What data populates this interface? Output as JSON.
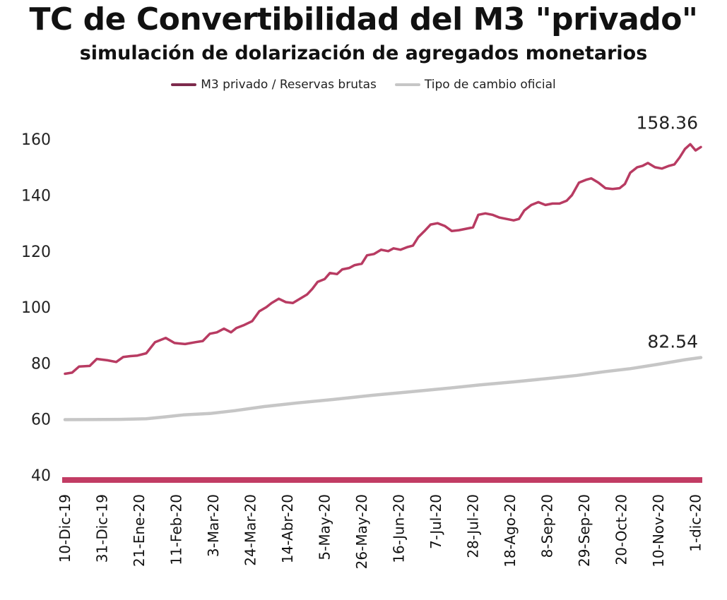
{
  "chart_data": {
    "type": "line",
    "title": "TC de Convertibilidad del M3 \"privado\"",
    "subtitle": "simulación de dolarización de agregados monetarios",
    "ylim": [
      40,
      170
    ],
    "yticks": [
      40,
      60,
      80,
      100,
      120,
      140,
      160
    ],
    "grid": false,
    "legend": "top-center",
    "x_start": "2019-12-10",
    "x_end": "2020-12-04",
    "x_tick_labels": [
      {
        "date": "2019-12-10",
        "label": "10-Dic-19"
      },
      {
        "date": "2019-12-31",
        "label": "31-Dic-19"
      },
      {
        "date": "2020-01-21",
        "label": "21-Ene-20"
      },
      {
        "date": "2020-02-11",
        "label": "11-Feb-20"
      },
      {
        "date": "2020-03-03",
        "label": "3-Mar-20"
      },
      {
        "date": "2020-03-24",
        "label": "24-Mar-20"
      },
      {
        "date": "2020-04-14",
        "label": "14-Abr-20"
      },
      {
        "date": "2020-05-05",
        "label": "5-May-20"
      },
      {
        "date": "2020-05-26",
        "label": "26-May-20"
      },
      {
        "date": "2020-06-16",
        "label": "16-Jun-20"
      },
      {
        "date": "2020-07-07",
        "label": "7-Jul-20"
      },
      {
        "date": "2020-07-28",
        "label": "28-Jul-20"
      },
      {
        "date": "2020-08-18",
        "label": "18-Ago-20"
      },
      {
        "date": "2020-09-08",
        "label": "8-Sep-20"
      },
      {
        "date": "2020-09-29",
        "label": "29-Sep-20"
      },
      {
        "date": "2020-10-20",
        "label": "20-Oct-20"
      },
      {
        "date": "2020-11-10",
        "label": "10-Nov-20"
      },
      {
        "date": "2020-12-01",
        "label": "1-dic-20"
      }
    ],
    "series": [
      {
        "name": "M3 privado / Reservas brutas",
        "color": "#b83b62",
        "end_label": "158.36",
        "points": [
          [
            "2019-12-10",
            76.2
          ],
          [
            "2019-12-14",
            76.6
          ],
          [
            "2019-12-18",
            78.8
          ],
          [
            "2019-12-24",
            79.0
          ],
          [
            "2019-12-28",
            81.5
          ],
          [
            "2020-01-03",
            81.0
          ],
          [
            "2020-01-08",
            80.4
          ],
          [
            "2020-01-12",
            82.2
          ],
          [
            "2020-01-16",
            82.5
          ],
          [
            "2020-01-20",
            82.7
          ],
          [
            "2020-01-25",
            83.5
          ],
          [
            "2020-01-30",
            87.5
          ],
          [
            "2020-02-05",
            89.0
          ],
          [
            "2020-02-10",
            87.2
          ],
          [
            "2020-02-16",
            86.8
          ],
          [
            "2020-02-22",
            87.5
          ],
          [
            "2020-02-26",
            87.9
          ],
          [
            "2020-03-01",
            90.5
          ],
          [
            "2020-03-05",
            91.0
          ],
          [
            "2020-03-09",
            92.3
          ],
          [
            "2020-03-13",
            91.0
          ],
          [
            "2020-03-16",
            92.5
          ],
          [
            "2020-03-20",
            93.5
          ],
          [
            "2020-03-25",
            95.0
          ],
          [
            "2020-03-29",
            98.5
          ],
          [
            "2020-04-02",
            100.0
          ],
          [
            "2020-04-05",
            101.5
          ],
          [
            "2020-04-09",
            103.0
          ],
          [
            "2020-04-13",
            101.8
          ],
          [
            "2020-04-17",
            101.5
          ],
          [
            "2020-04-21",
            103.0
          ],
          [
            "2020-04-25",
            104.5
          ],
          [
            "2020-04-28",
            106.5
          ],
          [
            "2020-05-01",
            109.0
          ],
          [
            "2020-05-05",
            110.0
          ],
          [
            "2020-05-08",
            112.2
          ],
          [
            "2020-05-12",
            111.8
          ],
          [
            "2020-05-15",
            113.5
          ],
          [
            "2020-05-19",
            114.0
          ],
          [
            "2020-05-22",
            115.0
          ],
          [
            "2020-05-26",
            115.5
          ],
          [
            "2020-05-29",
            118.5
          ],
          [
            "2020-06-02",
            119.0
          ],
          [
            "2020-06-06",
            120.5
          ],
          [
            "2020-06-10",
            120.0
          ],
          [
            "2020-06-13",
            121.0
          ],
          [
            "2020-06-17",
            120.5
          ],
          [
            "2020-06-21",
            121.5
          ],
          [
            "2020-06-24",
            122.0
          ],
          [
            "2020-06-27",
            125.0
          ],
          [
            "2020-07-01",
            127.5
          ],
          [
            "2020-07-04",
            129.5
          ],
          [
            "2020-07-08",
            130.0
          ],
          [
            "2020-07-12",
            129.0
          ],
          [
            "2020-07-16",
            127.2
          ],
          [
            "2020-07-20",
            127.5
          ],
          [
            "2020-07-24",
            128.0
          ],
          [
            "2020-07-28",
            128.5
          ],
          [
            "2020-07-31",
            133.0
          ],
          [
            "2020-08-04",
            133.5
          ],
          [
            "2020-08-08",
            133.0
          ],
          [
            "2020-08-12",
            132.0
          ],
          [
            "2020-08-16",
            131.5
          ],
          [
            "2020-08-20",
            131.0
          ],
          [
            "2020-08-23",
            131.5
          ],
          [
            "2020-08-26",
            134.5
          ],
          [
            "2020-08-30",
            136.5
          ],
          [
            "2020-09-03",
            137.5
          ],
          [
            "2020-09-07",
            136.5
          ],
          [
            "2020-09-11",
            137.0
          ],
          [
            "2020-09-15",
            137.0
          ],
          [
            "2020-09-19",
            138.0
          ],
          [
            "2020-09-22",
            140.0
          ],
          [
            "2020-09-26",
            144.5
          ],
          [
            "2020-09-30",
            145.5
          ],
          [
            "2020-10-03",
            146.0
          ],
          [
            "2020-10-07",
            144.5
          ],
          [
            "2020-10-11",
            142.5
          ],
          [
            "2020-10-15",
            142.2
          ],
          [
            "2020-10-19",
            142.5
          ],
          [
            "2020-10-22",
            144.0
          ],
          [
            "2020-10-25",
            148.0
          ],
          [
            "2020-10-29",
            150.0
          ],
          [
            "2020-11-01",
            150.5
          ],
          [
            "2020-11-04",
            151.5
          ],
          [
            "2020-11-08",
            150.0
          ],
          [
            "2020-11-12",
            149.5
          ],
          [
            "2020-11-16",
            150.5
          ],
          [
            "2020-11-19",
            151.0
          ],
          [
            "2020-11-22",
            153.5
          ],
          [
            "2020-11-25",
            156.5
          ],
          [
            "2020-11-28",
            158.2
          ],
          [
            "2020-12-01",
            156.0
          ],
          [
            "2020-12-04",
            157.2
          ]
        ]
      },
      {
        "name": "Tipo de cambio oficial",
        "color": "#c6c6c6",
        "end_label": "82.54",
        "points": [
          [
            "2019-12-10",
            59.8
          ],
          [
            "2020-01-10",
            59.9
          ],
          [
            "2020-01-25",
            60.1
          ],
          [
            "2020-02-05",
            60.8
          ],
          [
            "2020-02-15",
            61.5
          ],
          [
            "2020-03-01",
            62.0
          ],
          [
            "2020-03-15",
            63.0
          ],
          [
            "2020-04-01",
            64.5
          ],
          [
            "2020-04-20",
            65.8
          ],
          [
            "2020-05-10",
            67.0
          ],
          [
            "2020-06-01",
            68.5
          ],
          [
            "2020-06-20",
            69.6
          ],
          [
            "2020-07-10",
            70.8
          ],
          [
            "2020-08-01",
            72.2
          ],
          [
            "2020-08-20",
            73.3
          ],
          [
            "2020-09-10",
            74.6
          ],
          [
            "2020-09-25",
            75.6
          ],
          [
            "2020-10-10",
            76.9
          ],
          [
            "2020-10-25",
            78.0
          ],
          [
            "2020-11-10",
            79.6
          ],
          [
            "2020-11-25",
            81.2
          ],
          [
            "2020-12-04",
            82.0
          ]
        ]
      }
    ]
  }
}
